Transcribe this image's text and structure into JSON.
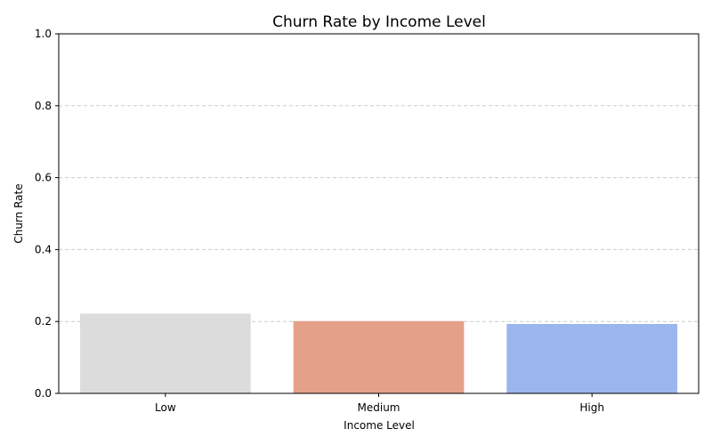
{
  "chart_data": {
    "type": "bar",
    "title": "Churn Rate by Income Level",
    "xlabel": "Income Level",
    "ylabel": "Churn Rate",
    "categories": [
      "Low",
      "Medium",
      "High"
    ],
    "values": [
      0.222,
      0.201,
      0.193
    ],
    "colors": [
      "#dcdcdc",
      "#e5a08a",
      "#9bb5ef"
    ],
    "ylim": [
      0,
      1.0
    ],
    "yticks": [
      "0.0",
      "0.2",
      "0.4",
      "0.6",
      "0.8",
      "1.0"
    ],
    "grid": "y-dashed",
    "legend": "none"
  }
}
